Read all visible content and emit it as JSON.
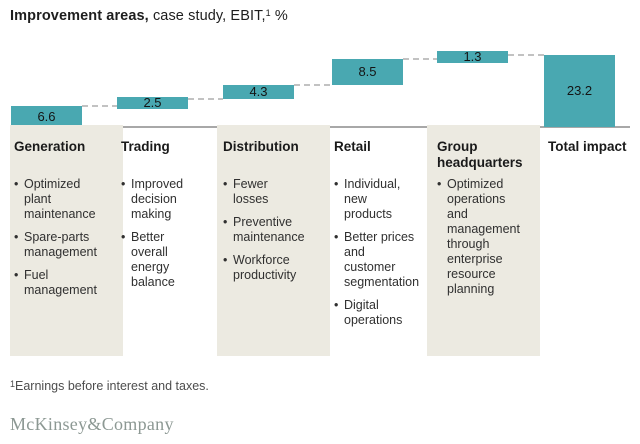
{
  "title": {
    "bold": "Improvement areas,",
    "regular": " case study, EBIT,",
    "footnote_marker": "1",
    "suffix": " %"
  },
  "chart_data": {
    "type": "bar",
    "subtype": "waterfall",
    "title": "Improvement areas, case study, EBIT, %",
    "unit": "%",
    "categories": [
      "Generation",
      "Trading",
      "Distribution",
      "Retail",
      "Group headquarters",
      "Total impact"
    ],
    "values": [
      6.6,
      2.5,
      4.3,
      8.5,
      1.3
    ],
    "total": 23.2,
    "value_labels": [
      "6.6",
      "2.5",
      "4.3",
      "8.5",
      "1.3",
      "23.2"
    ],
    "ylim": [
      0,
      23.2
    ],
    "grid": false,
    "legend": "none",
    "bar_color": "#49a8b1",
    "connector_style": "dashed",
    "connector_color": "#c2c2c2",
    "baseline_color": "#a8a8a8"
  },
  "columns": [
    {
      "header": "Generation",
      "panel": true,
      "bullets": [
        "Optimized plant maintenance",
        "Spare-parts management",
        "Fuel management"
      ]
    },
    {
      "header": "Trading",
      "panel": false,
      "bullets": [
        "Improved decision making",
        "Better overall energy balance"
      ]
    },
    {
      "header": "Distribution",
      "panel": true,
      "bullets": [
        "Fewer losses",
        "Preventive maintenance",
        "Workforce productivity"
      ]
    },
    {
      "header": "Retail",
      "panel": false,
      "bullets": [
        "Individual, new products",
        "Better prices and customer segmentation",
        "Digital operations"
      ]
    },
    {
      "header": "Group headquarters",
      "panel": true,
      "bullets": [
        "Optimized operations and management through enterprise resource planning"
      ]
    },
    {
      "header": "Total impact",
      "panel": false,
      "bullets": []
    }
  ],
  "footnote": {
    "marker": "1",
    "text": "Earnings before interest and taxes."
  },
  "logo": "McKinsey&Company",
  "colors": {
    "bar_teal": "#49a8b1",
    "panel_beige": "#eceae1",
    "logo_gray": "#8c9893",
    "text_dark": "#1e1e1e"
  }
}
